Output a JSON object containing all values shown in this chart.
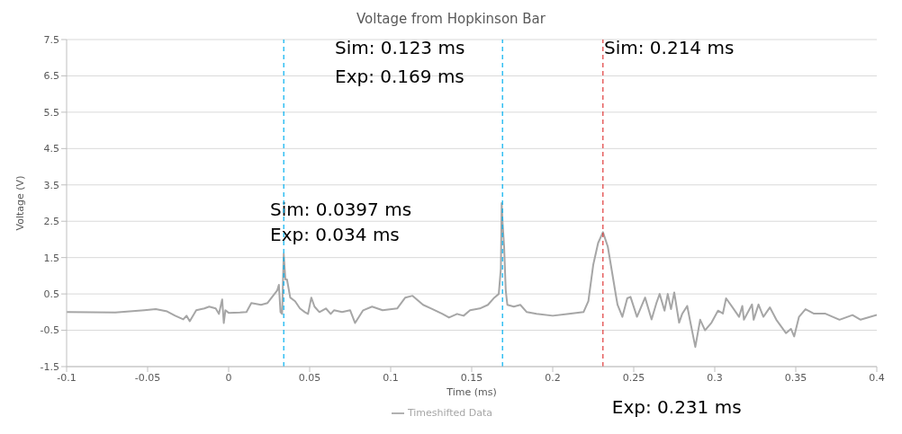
{
  "chart_data": {
    "type": "line",
    "title": "Voltage from Hopkinson Bar",
    "xlabel": "Time (ms)",
    "ylabel": "Voltage (V)",
    "xlim": [
      -0.1,
      0.4
    ],
    "xticks": [
      -0.1,
      -0.05,
      0,
      0.05,
      0.1,
      0.15,
      0.2,
      0.25,
      0.3,
      0.35,
      0.4
    ],
    "ylim": [
      -1.5,
      7.5
    ],
    "yticks": [
      -1.5,
      -0.5,
      0.5,
      1.5,
      2.5,
      3.5,
      4.5,
      5.5,
      6.5,
      7.5
    ],
    "grid": "y",
    "legend": "bottom",
    "marker": "none",
    "line_style": "solid",
    "series": [
      {
        "name": "Timeshifted Data",
        "color": "#a6a6a6",
        "x": [
          -0.1,
          -0.07,
          -0.052,
          -0.045,
          -0.038,
          -0.033,
          -0.028,
          -0.026,
          -0.024,
          -0.02,
          -0.015,
          -0.012,
          -0.008,
          -0.006,
          -0.004,
          -0.003,
          -0.002,
          0,
          0.007,
          0.011,
          0.014,
          0.02,
          0.024,
          0.03,
          0.031,
          0.032,
          0.033,
          0.034,
          0.035,
          0.036,
          0.038,
          0.041,
          0.044,
          0.047,
          0.049,
          0.051,
          0.053,
          0.056,
          0.06,
          0.063,
          0.065,
          0.07,
          0.075,
          0.078,
          0.083,
          0.0885,
          0.095,
          0.104,
          0.109,
          0.1135,
          0.12,
          0.125,
          0.132,
          0.136,
          0.141,
          0.145,
          0.149,
          0.155,
          0.16,
          0.164,
          0.1667,
          0.168,
          0.1685,
          0.169,
          0.17,
          0.171,
          0.172,
          0.176,
          0.18,
          0.184,
          0.19,
          0.2,
          0.21,
          0.219,
          0.222,
          0.225,
          0.228,
          0.231,
          0.234,
          0.239,
          0.24,
          0.243,
          0.246,
          0.248,
          0.252,
          0.257,
          0.261,
          0.264,
          0.266,
          0.269,
          0.271,
          0.273,
          0.275,
          0.278,
          0.28,
          0.283,
          0.285,
          0.288,
          0.291,
          0.294,
          0.298,
          0.302,
          0.305,
          0.307,
          0.311,
          0.315,
          0.317,
          0.318,
          0.323,
          0.324,
          0.327,
          0.33,
          0.334,
          0.338,
          0.344,
          0.347,
          0.349,
          0.352,
          0.356,
          0.361,
          0.368,
          0.377,
          0.385,
          0.39,
          0.4
        ],
        "values": [
          0,
          -0.01,
          0.05,
          0.08,
          0.02,
          -0.1,
          -0.2,
          -0.1,
          -0.25,
          0.05,
          0.1,
          0.15,
          0.1,
          -0.05,
          0.35,
          -0.3,
          0.05,
          -0.02,
          -0.01,
          0,
          0.25,
          0.2,
          0.25,
          0.6,
          0.75,
          0,
          -0.05,
          1.6,
          0.9,
          0.9,
          0.4,
          0.3,
          0.1,
          0,
          -0.05,
          0.4,
          0.15,
          0,
          0.1,
          -0.05,
          0.05,
          0,
          0.05,
          -0.3,
          0.05,
          0.15,
          0.05,
          0.1,
          0.4,
          0.45,
          0.2,
          0.1,
          -0.05,
          -0.15,
          -0.05,
          -0.1,
          0.05,
          0.1,
          0.2,
          0.4,
          0.5,
          1.2,
          3,
          2.5,
          1.8,
          0.6,
          0.2,
          0.15,
          0.2,
          0,
          -0.05,
          -0.1,
          -0.05,
          0,
          0.3,
          1.3,
          1.9,
          2.2,
          1.8,
          0.46,
          0.2,
          -0.13,
          0.38,
          0.42,
          -0.13,
          0.4,
          -0.2,
          0.25,
          0.5,
          0.04,
          0.5,
          0.08,
          0.54,
          -0.29,
          -0.04,
          0.17,
          -0.29,
          -0.96,
          -0.21,
          -0.5,
          -0.29,
          0.04,
          -0.04,
          0.38,
          0.13,
          -0.13,
          0.17,
          -0.21,
          0.21,
          -0.21,
          0.21,
          -0.13,
          0.13,
          -0.21,
          -0.58,
          -0.46,
          -0.67,
          -0.13,
          0.08,
          -0.04,
          -0.04,
          -0.21,
          -0.08,
          -0.21,
          -0.08
        ]
      }
    ],
    "ref_lines": [
      {
        "axis": "x",
        "value": 0.034,
        "color": "#00b0f0",
        "line_style": "dashed"
      },
      {
        "axis": "x",
        "value": 0.169,
        "color": "#00b0f0",
        "line_style": "dashed"
      },
      {
        "axis": "x",
        "value": 0.231,
        "color": "#e03a3a",
        "line_style": "dashed",
        "label": "Exp: 0.231 ms"
      }
    ],
    "annotations": [
      "Sim: 0.0397 ms",
      "Exp: 0.034 ms",
      "Sim: 0.123 ms",
      "Exp: 0.169 ms",
      "Sim: 0.214 ms"
    ]
  }
}
